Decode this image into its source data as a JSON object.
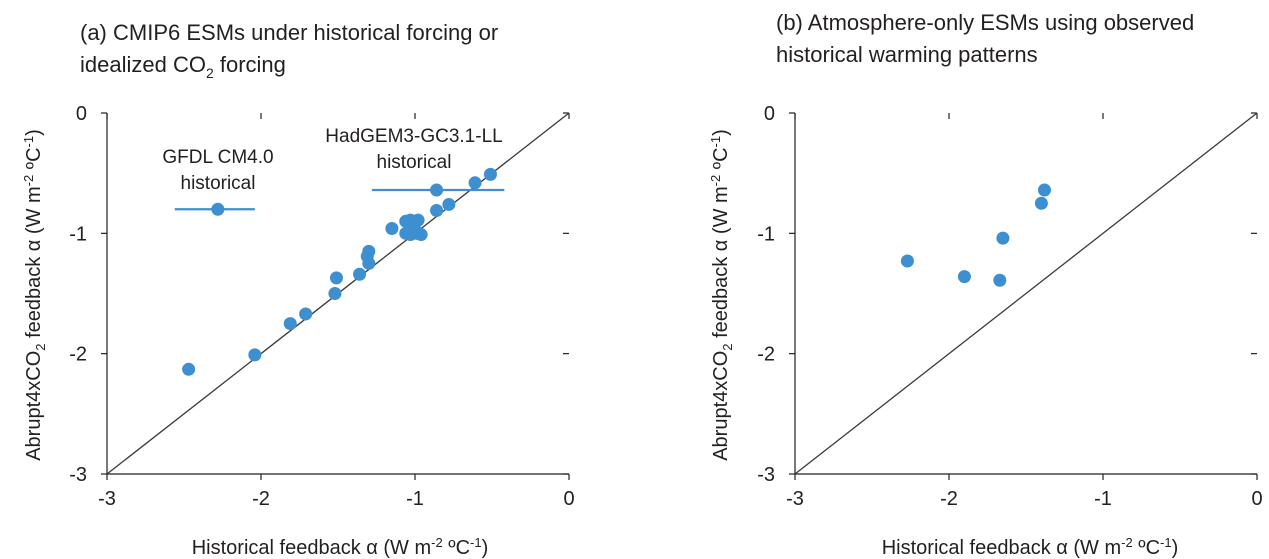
{
  "colors": {
    "marker": "#3d8fd0",
    "axis": "#231f20",
    "line": "#3a3a3a"
  },
  "chart_data": [
    {
      "type": "scatter",
      "title_line1": "(a) CMIP6 ESMs under historical forcing or",
      "title_line2_prefix": "idealized CO",
      "title_line2_sub": "2",
      "title_line2_suffix": " forcing",
      "xlabel_prefix": "Historical feedback α (W m",
      "xlabel_sup1": "-2",
      "xlabel_mid": " ºC",
      "xlabel_sup2": "-1",
      "xlabel_suffix": ")",
      "ylabel_prefix": "Abrupt4xCO",
      "ylabel_sub": "2",
      "ylabel_mid": " feedback α (W m",
      "ylabel_sup1": "-2",
      "ylabel_mid2": " ºC",
      "ylabel_sup2": "-1",
      "ylabel_suffix": ")",
      "xlim": [
        -3,
        0
      ],
      "ylim": [
        -3,
        0
      ],
      "xticks": [
        -3,
        -2,
        -1,
        0
      ],
      "yticks": [
        0,
        -1,
        -2,
        -3
      ],
      "xtick_labels": [
        "-3",
        "-2",
        "-1",
        "0"
      ],
      "ytick_labels": [
        "0",
        "-1",
        "-2",
        "-3"
      ],
      "one_to_one_line": true,
      "points": [
        {
          "x": -2.47,
          "y": -2.13
        },
        {
          "x": -2.04,
          "y": -2.01
        },
        {
          "x": -1.81,
          "y": -1.75
        },
        {
          "x": -1.71,
          "y": -1.67
        },
        {
          "x": -1.52,
          "y": -1.5
        },
        {
          "x": -1.51,
          "y": -1.37
        },
        {
          "x": -1.36,
          "y": -1.34
        },
        {
          "x": -1.3,
          "y": -1.25
        },
        {
          "x": -1.31,
          "y": -1.19
        },
        {
          "x": -1.3,
          "y": -1.15
        },
        {
          "x": -1.15,
          "y": -0.96
        },
        {
          "x": -1.06,
          "y": -0.9
        },
        {
          "x": -1.03,
          "y": -0.89
        },
        {
          "x": -0.98,
          "y": -0.89
        },
        {
          "x": -1.02,
          "y": -0.94
        },
        {
          "x": -1.0,
          "y": -0.97
        },
        {
          "x": -1.06,
          "y": -1.0
        },
        {
          "x": -1.03,
          "y": -1.01
        },
        {
          "x": -0.96,
          "y": -1.01
        },
        {
          "x": -0.99,
          "y": -1.0
        },
        {
          "x": -0.86,
          "y": -0.81
        },
        {
          "x": -0.78,
          "y": -0.76
        },
        {
          "x": -0.61,
          "y": -0.58
        },
        {
          "x": -0.51,
          "y": -0.51
        }
      ],
      "highlighted": [
        {
          "label_line1": "GFDL CM4.0",
          "label_line2": "historical",
          "x": -2.28,
          "y": -0.8,
          "xerr_low": -2.56,
          "xerr_high": -2.04
        },
        {
          "label_line1": "HadGEM3-GC3.1-LL",
          "label_line2": "historical",
          "x": -0.86,
          "y": -0.64,
          "xerr_low": -1.28,
          "xerr_high": -0.42
        }
      ]
    },
    {
      "type": "scatter",
      "title_line1": "(b) Atmosphere-only ESMs using observed",
      "title_line2": "historical warming patterns",
      "xlabel_prefix": "Historical feedback α (W m",
      "xlabel_sup1": "-2",
      "xlabel_mid": " ºC",
      "xlabel_sup2": "-1",
      "xlabel_suffix": ")",
      "ylabel_prefix": "Abrupt4xCO",
      "ylabel_sub": "2",
      "ylabel_mid": " feedback α (W m",
      "ylabel_sup1": "-2",
      "ylabel_mid2": " ºC",
      "ylabel_sup2": "-1",
      "ylabel_suffix": ")",
      "xlim": [
        -3,
        0
      ],
      "ylim": [
        -3,
        0
      ],
      "xticks": [
        -3,
        -2,
        -1,
        0
      ],
      "yticks": [
        0,
        -1,
        -2,
        -3
      ],
      "xtick_labels": [
        "-3",
        "-2",
        "-1",
        "0"
      ],
      "ytick_labels": [
        "0",
        "-1",
        "-2",
        "-3"
      ],
      "one_to_one_line": true,
      "points": [
        {
          "x": -2.27,
          "y": -1.23
        },
        {
          "x": -1.9,
          "y": -1.36
        },
        {
          "x": -1.67,
          "y": -1.39
        },
        {
          "x": -1.65,
          "y": -1.04
        },
        {
          "x": -1.4,
          "y": -0.75
        },
        {
          "x": -1.38,
          "y": -0.64
        }
      ]
    }
  ]
}
